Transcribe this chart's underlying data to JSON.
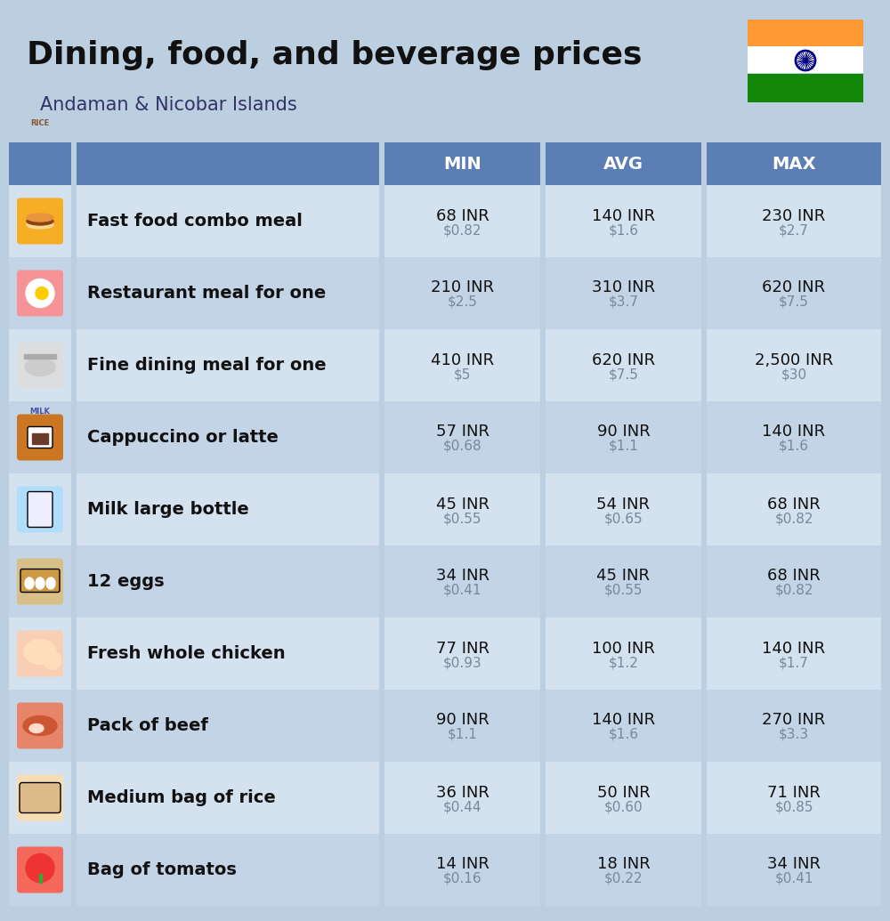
{
  "title": "Dining, food, and beverage prices",
  "subtitle": "Andaman & Nicobar Islands",
  "bg_color": "#bccfe0",
  "header_color": "#5b7eb5",
  "header_text_color": "#ffffff",
  "row_color_odd": "#d4e1ef",
  "row_color_even": "#c2d4e6",
  "label_text_color": "#111111",
  "value_text_color": "#111111",
  "usd_text_color": "#778899",
  "columns": [
    "MIN",
    "AVG",
    "MAX"
  ],
  "rows": [
    {
      "label": "Fast food combo meal",
      "min_inr": "68 INR",
      "min_usd": "$0.82",
      "avg_inr": "140 INR",
      "avg_usd": "$1.6",
      "max_inr": "230 INR",
      "max_usd": "$2.7"
    },
    {
      "label": "Restaurant meal for one",
      "min_inr": "210 INR",
      "min_usd": "$2.5",
      "avg_inr": "310 INR",
      "avg_usd": "$3.7",
      "max_inr": "620 INR",
      "max_usd": "$7.5"
    },
    {
      "label": "Fine dining meal for one",
      "min_inr": "410 INR",
      "min_usd": "$5",
      "avg_inr": "620 INR",
      "avg_usd": "$7.5",
      "max_inr": "2,500 INR",
      "max_usd": "$30"
    },
    {
      "label": "Cappuccino or latte",
      "min_inr": "57 INR",
      "min_usd": "$0.68",
      "avg_inr": "90 INR",
      "avg_usd": "$1.1",
      "max_inr": "140 INR",
      "max_usd": "$1.6"
    },
    {
      "label": "Milk large bottle",
      "min_inr": "45 INR",
      "min_usd": "$0.55",
      "avg_inr": "54 INR",
      "avg_usd": "$0.65",
      "max_inr": "68 INR",
      "max_usd": "$0.82"
    },
    {
      "label": "12 eggs",
      "min_inr": "34 INR",
      "min_usd": "$0.41",
      "avg_inr": "45 INR",
      "avg_usd": "$0.55",
      "max_inr": "68 INR",
      "max_usd": "$0.82"
    },
    {
      "label": "Fresh whole chicken",
      "min_inr": "77 INR",
      "min_usd": "$0.93",
      "avg_inr": "100 INR",
      "avg_usd": "$1.2",
      "max_inr": "140 INR",
      "max_usd": "$1.7"
    },
    {
      "label": "Pack of beef",
      "min_inr": "90 INR",
      "min_usd": "$1.1",
      "avg_inr": "140 INR",
      "avg_usd": "$1.6",
      "max_inr": "270 INR",
      "max_usd": "$3.3"
    },
    {
      "label": "Medium bag of rice",
      "min_inr": "36 INR",
      "min_usd": "$0.44",
      "avg_inr": "50 INR",
      "avg_usd": "$0.60",
      "max_inr": "71 INR",
      "max_usd": "$0.85"
    },
    {
      "label": "Bag of tomatos",
      "min_inr": "14 INR",
      "min_usd": "$0.16",
      "avg_inr": "18 INR",
      "avg_usd": "$0.22",
      "max_inr": "34 INR",
      "max_usd": "$0.41"
    }
  ]
}
